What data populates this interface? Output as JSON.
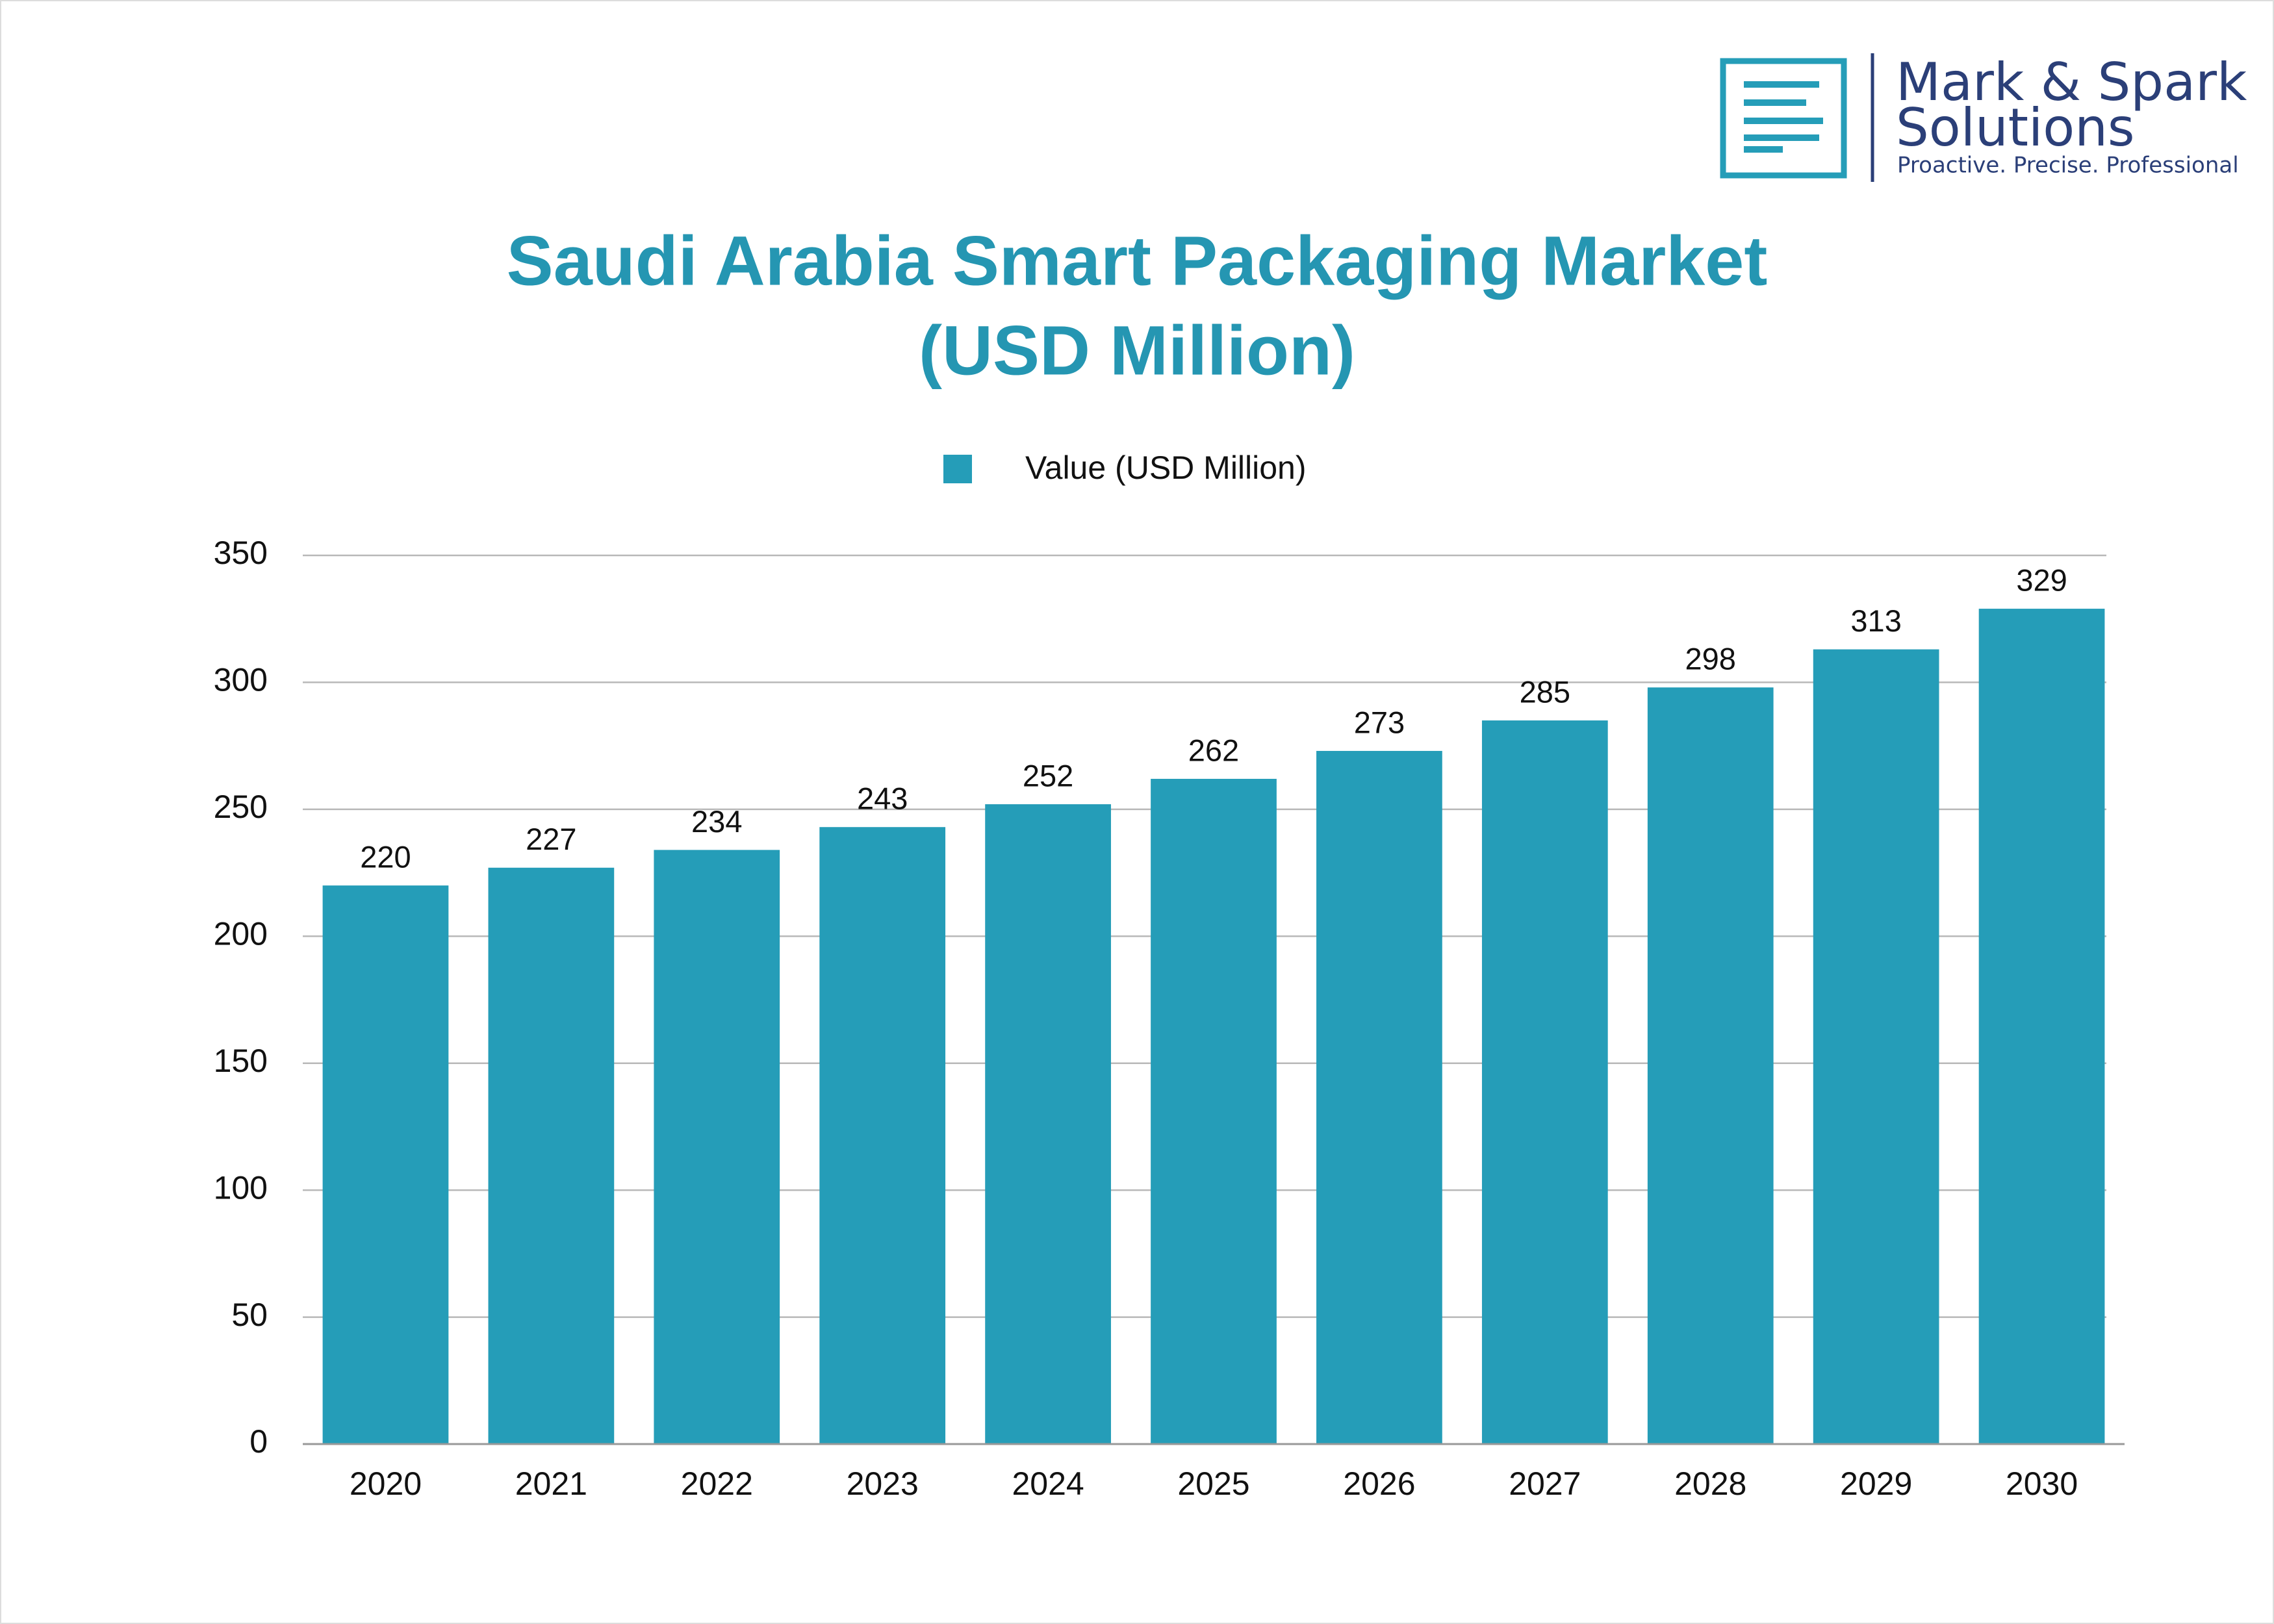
{
  "chart_data": {
    "type": "bar",
    "title": [
      "Saudi Arabia Smart Packaging Market",
      "(USD Million)"
    ],
    "categories": [
      "2020",
      "2021",
      "2022",
      "2023",
      "2024",
      "2025",
      "2026",
      "2027",
      "2028",
      "2029",
      "2030"
    ],
    "series": [
      {
        "name": "Value (USD Million)",
        "color": "#259db8",
        "values": [
          220,
          227,
          234,
          243,
          252,
          262,
          273,
          285,
          298,
          313,
          329
        ]
      }
    ],
    "ylim": [
      0,
      350
    ],
    "yticks": [
      0,
      50,
      100,
      150,
      200,
      250,
      300,
      350
    ],
    "grid": true,
    "legend": "top"
  },
  "logo": {
    "name": [
      "Mark & Spark",
      "Solutions"
    ],
    "tagline": "Proactive. Precise. Professional"
  }
}
